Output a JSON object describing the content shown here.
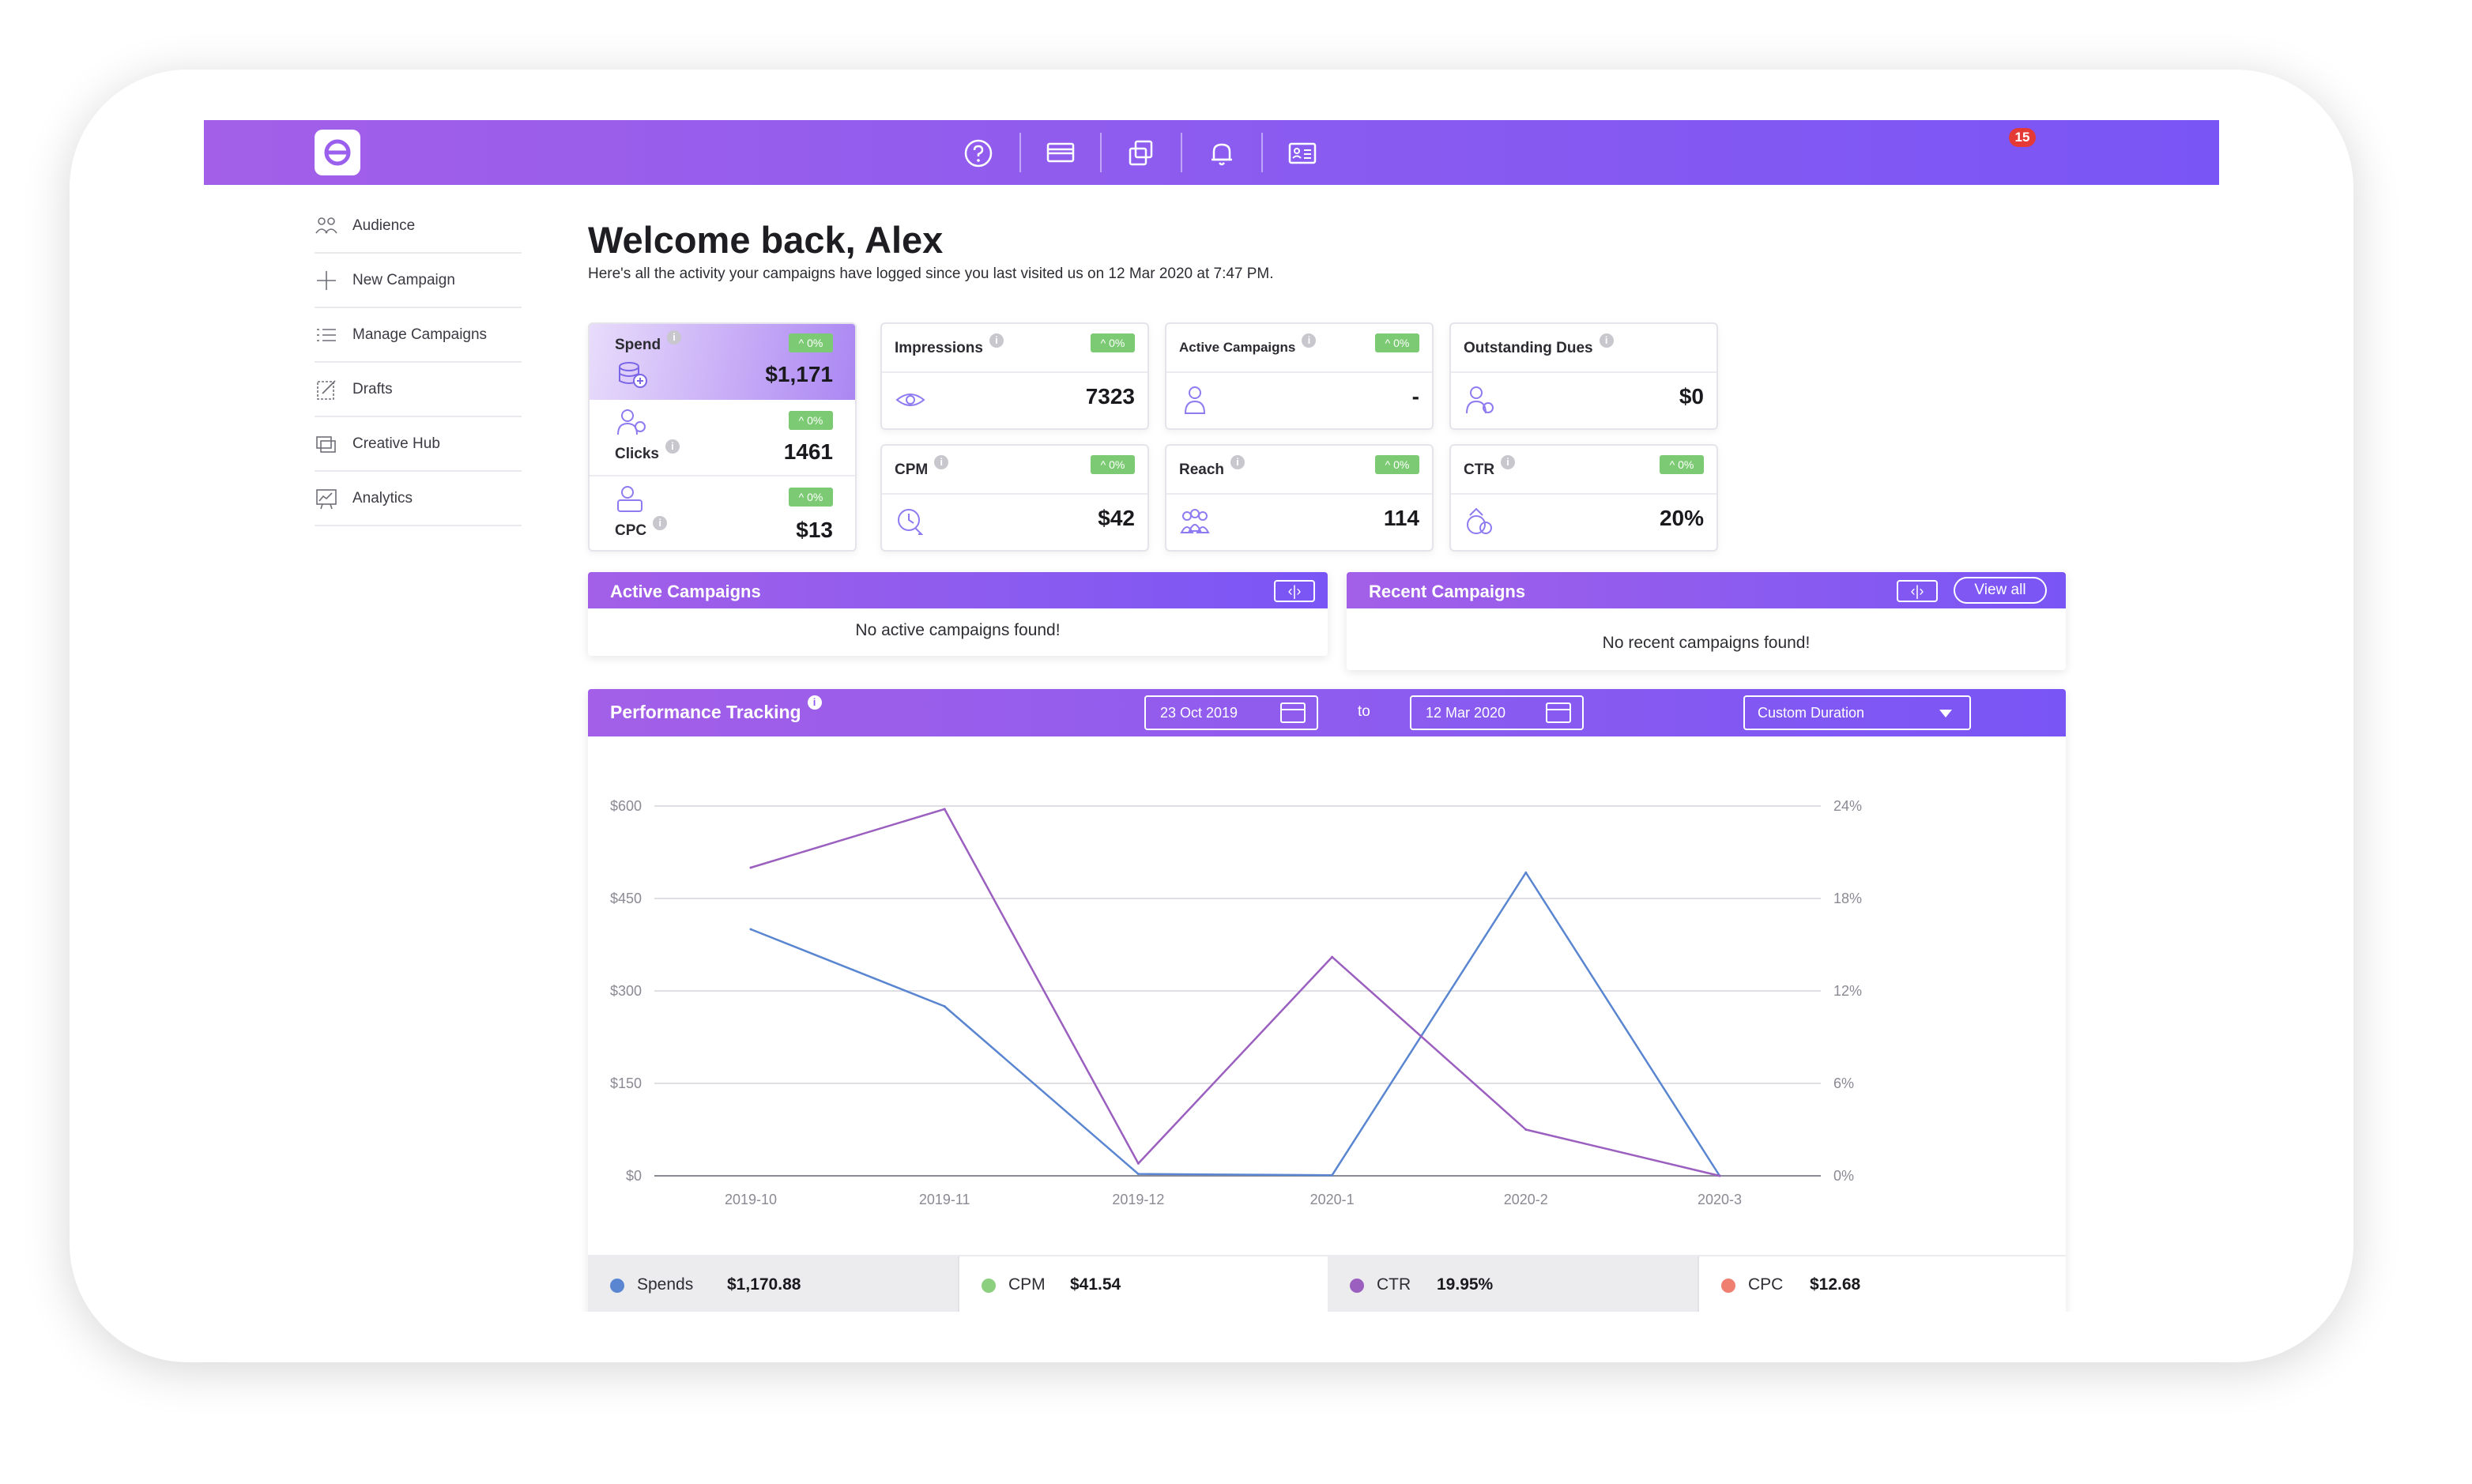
{
  "topbar": {
    "icons": [
      "logo-icon",
      "help-icon",
      "billing-icon",
      "copy-icon",
      "bell-icon",
      "profile-card-icon"
    ],
    "notification_count": "15"
  },
  "sidebar": {
    "items": [
      {
        "label": "Audience",
        "icon": "audience-icon"
      },
      {
        "label": "New Campaign",
        "icon": "plus-icon"
      },
      {
        "label": "Manage Campaigns",
        "icon": "list-icon"
      },
      {
        "label": "Drafts",
        "icon": "drafts-icon"
      },
      {
        "label": "Creative Hub",
        "icon": "creative-hub-icon"
      },
      {
        "label": "Analytics",
        "icon": "analytics-icon"
      }
    ]
  },
  "header": {
    "title": "Welcome back,  Alex",
    "subtitle": "Here's all the activity your campaigns have logged since you last visited us on 12 Mar 2020 at 7:47 PM."
  },
  "stats": {
    "spend": {
      "label": "Spend",
      "value": "$1,171",
      "change": "^ 0%"
    },
    "clicks": {
      "label": "Clicks",
      "value": "1461",
      "change": "^ 0%"
    },
    "cpc": {
      "label": "CPC",
      "value": "$13",
      "change": "^ 0%"
    },
    "impressions": {
      "label": "Impressions",
      "value": "7323",
      "change": "^ 0%"
    },
    "active_campaigns": {
      "label": "Active Campaigns",
      "value": "-",
      "change": "^ 0%"
    },
    "outstanding_dues": {
      "label": "Outstanding Dues",
      "value": "$0"
    },
    "cpm": {
      "label": "CPM",
      "value": "$42",
      "change": "^ 0%"
    },
    "reach": {
      "label": "Reach",
      "value": "114",
      "change": "^ 0%"
    },
    "ctr": {
      "label": "CTR",
      "value": "20%",
      "change": "^ 0%"
    }
  },
  "active_campaigns_panel": {
    "title": "Active Campaigns",
    "empty": "No active campaigns found!"
  },
  "recent_campaigns_panel": {
    "title": "Recent Campaigns",
    "view_all": "View all",
    "empty": "No recent campaigns found!"
  },
  "performance": {
    "title": "Performance Tracking",
    "from_date": "23 Oct 2019",
    "to_label": "to",
    "to_date": "12 Mar 2020",
    "duration": "Custom Duration",
    "legend": [
      {
        "name": "Spends",
        "value": "$1,170.88",
        "color": "#5a86d1"
      },
      {
        "name": "CPM",
        "value": "$41.54",
        "color": "#8ccf7e"
      },
      {
        "name": "CTR",
        "value": "19.95%",
        "color": "#9a5fbf"
      },
      {
        "name": "CPC",
        "value": "$12.68",
        "color": "#ee7f71"
      }
    ]
  },
  "chart_data": {
    "type": "line",
    "categories": [
      "2019-10",
      "2019-11",
      "2019-12",
      "2020-1",
      "2020-2",
      "2020-3"
    ],
    "y_left_ticks": [
      "$0",
      "$150",
      "$300",
      "$450",
      "$600"
    ],
    "y_right_ticks": [
      "0%",
      "6%",
      "12%",
      "18%",
      "24%"
    ],
    "ylim_left": [
      0,
      600
    ],
    "ylim_right": [
      0,
      24
    ],
    "grid": true,
    "series": [
      {
        "name": "Spends",
        "axis": "left",
        "color": "#5a86d1",
        "values": [
          400,
          275,
          3,
          1,
          492,
          0
        ]
      },
      {
        "name": "CTR",
        "axis": "right",
        "color": "#9a5fbf",
        "values": [
          20.0,
          23.8,
          0.8,
          14.2,
          3.0,
          0.0
        ]
      }
    ]
  }
}
